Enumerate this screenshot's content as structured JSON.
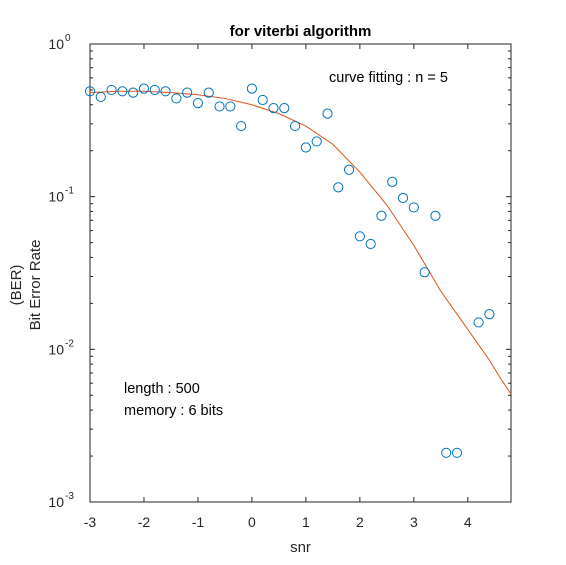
{
  "chart_data": {
    "type": "scatter",
    "title": "for viterbi algorithm",
    "xlabel": "snr",
    "ylabel": [
      "(BER)",
      "Bit Error Rate"
    ],
    "xlim": [
      -3,
      4.8
    ],
    "ylim": [
      0.001,
      1
    ],
    "yscale": "log",
    "xticks": [
      -3,
      -2,
      -1,
      0,
      1,
      2,
      3,
      4
    ],
    "yticks": [
      {
        "value": 1,
        "base": "10",
        "exp": "0"
      },
      {
        "value": 0.1,
        "base": "10",
        "exp": "-1"
      },
      {
        "value": 0.01,
        "base": "10",
        "exp": "-2"
      },
      {
        "value": 0.001,
        "base": "10",
        "exp": "-3"
      }
    ],
    "grid": false,
    "annotations": {
      "fit": "curve fitting : n = 5",
      "length": "length : 500",
      "memory": "memory : 6 bits"
    },
    "series": [
      {
        "kind": "markers",
        "color": "#0072BD",
        "x": [
          -3.0,
          -2.8,
          -2.6,
          -2.4,
          -2.2,
          -2.0,
          -1.8,
          -1.6,
          -1.4,
          -1.2,
          -1.0,
          -0.8,
          -0.6,
          -0.4,
          -0.2,
          0.0,
          0.2,
          0.4,
          0.6,
          0.8,
          1.0,
          1.2,
          1.4,
          1.6,
          1.8,
          2.0,
          2.2,
          2.4,
          2.6,
          2.8,
          3.0,
          3.2,
          3.4,
          3.6,
          3.8,
          4.0,
          4.2,
          4.4,
          4.6
        ],
        "y": [
          0.49,
          0.45,
          0.5,
          0.49,
          0.48,
          0.51,
          0.5,
          0.49,
          0.44,
          0.48,
          0.41,
          0.48,
          0.39,
          0.39,
          0.29,
          0.51,
          0.43,
          0.38,
          0.38,
          0.29,
          0.21,
          0.23,
          0.35,
          0.115,
          0.15,
          0.055,
          0.049,
          0.075,
          0.125,
          0.098,
          0.085,
          0.032,
          0.075,
          0.0021,
          0.0021,
          null,
          0.015,
          0.017,
          null
        ]
      },
      {
        "kind": "fit",
        "color": "#D95319",
        "x": [
          -3.0,
          -2.5,
          -2.0,
          -1.5,
          -1.0,
          -0.5,
          0.0,
          0.5,
          1.0,
          1.5,
          2.0,
          2.5,
          3.0,
          3.5,
          4.0,
          4.4,
          4.6,
          4.8
        ],
        "y": [
          0.48,
          0.49,
          0.49,
          0.48,
          0.465,
          0.44,
          0.4,
          0.35,
          0.29,
          0.22,
          0.145,
          0.088,
          0.048,
          0.024,
          0.0135,
          0.0085,
          0.0065,
          0.0051
        ]
      }
    ]
  }
}
